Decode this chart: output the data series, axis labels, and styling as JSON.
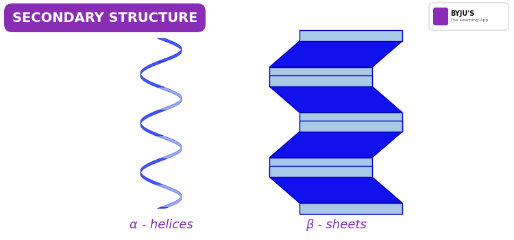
{
  "title": "SECONDARY STRUCTURE",
  "title_bg_color": "#882DB4",
  "title_text_color": "#FFFFFF",
  "bg_color": "#FFFFFF",
  "label_color": "#882DB4",
  "label_beta": "β - sheets",
  "label_alpha_text": "α - helices",
  "helix_dark": "#3333FF",
  "helix_mid": "#5566FF",
  "helix_light": "#AABBFF",
  "sheet_top_color": "#A8C8E8",
  "sheet_front_color": "#1111EE",
  "sheet_edge_color": "#0000BB"
}
